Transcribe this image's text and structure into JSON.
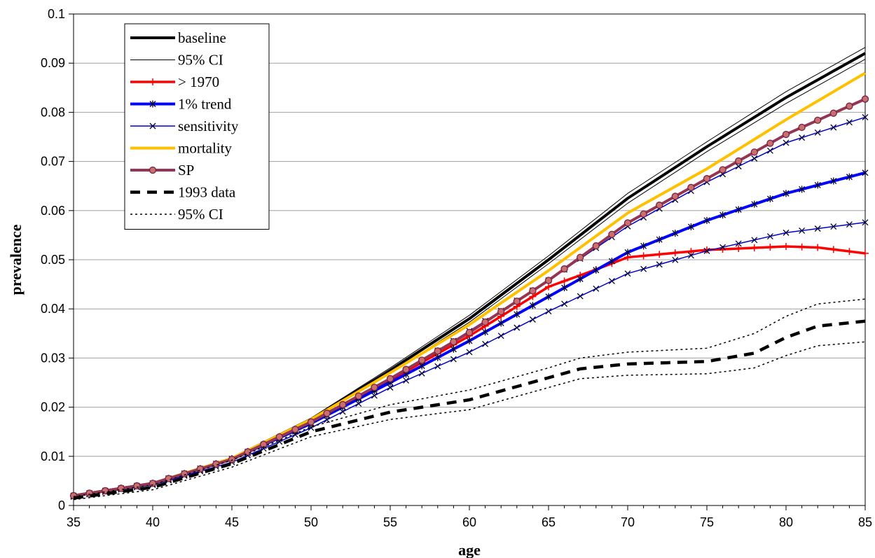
{
  "chart_data": {
    "type": "line",
    "title": "",
    "xlabel": "age",
    "ylabel": "prevalence",
    "xlim": [
      35,
      85
    ],
    "ylim": [
      0,
      0.1
    ],
    "x_ticks": [
      35,
      40,
      45,
      50,
      55,
      60,
      65,
      70,
      75,
      80,
      85
    ],
    "y_ticks": [
      0,
      0.01,
      0.02,
      0.03,
      0.04,
      0.05,
      0.06,
      0.07,
      0.08,
      0.09,
      0.1
    ],
    "x_tick_labels": [
      "35",
      "40",
      "45",
      "50",
      "55",
      "60",
      "65",
      "70",
      "75",
      "80",
      "85"
    ],
    "y_tick_labels": [
      "0",
      "0.01",
      "0.02",
      "0.03",
      "0.04",
      "0.05",
      "0.06",
      "0.07",
      "0.08",
      "0.09",
      "0.1"
    ],
    "grid": "horizontal",
    "legend_position": "top-left",
    "series": [
      {
        "name": "baseline",
        "color": "#000000",
        "width": 4,
        "dash": "",
        "marker": "none",
        "legend_marker": "none",
        "x": [
          35,
          40,
          45,
          50,
          55,
          60,
          65,
          70,
          75,
          80,
          85
        ],
        "y": [
          0.002,
          0.0045,
          0.0095,
          0.0175,
          0.0275,
          0.038,
          0.05,
          0.0625,
          0.073,
          0.083,
          0.092
        ]
      },
      {
        "name": "95% CI",
        "color": "#000000",
        "width": 1,
        "dash": "",
        "marker": "none",
        "legend_marker": "none",
        "x": [
          35,
          40,
          45,
          50,
          55,
          60,
          65,
          70,
          75,
          80,
          85
        ],
        "y": [
          0.0022,
          0.0047,
          0.0098,
          0.0178,
          0.028,
          0.0387,
          0.0508,
          0.0635,
          0.074,
          0.0842,
          0.0932
        ],
        "y_lower": [
          0.0018,
          0.0043,
          0.0092,
          0.0172,
          0.027,
          0.0373,
          0.0492,
          0.0615,
          0.072,
          0.0818,
          0.0908
        ]
      },
      {
        "name": "> 1970",
        "color": "#ff0000",
        "width": 3.5,
        "dash": "",
        "marker": "plus",
        "legend_marker": "plus",
        "x": [
          35,
          40,
          45,
          50,
          55,
          60,
          65,
          68,
          70,
          75,
          80,
          82,
          85
        ],
        "y": [
          0.002,
          0.0045,
          0.0095,
          0.017,
          0.0255,
          0.0345,
          0.0445,
          0.048,
          0.0505,
          0.052,
          0.0527,
          0.0525,
          0.0513
        ]
      },
      {
        "name": "1% trend",
        "color": "#0000ff",
        "width": 4,
        "dash": "",
        "marker": "asterisk",
        "legend_marker": "asterisk",
        "x": [
          35,
          40,
          45,
          50,
          55,
          60,
          65,
          70,
          75,
          80,
          85
        ],
        "y": [
          0.002,
          0.0045,
          0.0095,
          0.0167,
          0.025,
          0.0335,
          0.0425,
          0.0515,
          0.058,
          0.0635,
          0.0677
        ]
      },
      {
        "name": "sensitivity",
        "color": "#0000cc",
        "width": 1.5,
        "dash": "",
        "marker": "x",
        "legend_marker": "x",
        "x": [
          35,
          40,
          45,
          50,
          55,
          60,
          65,
          70,
          75,
          80,
          85
        ],
        "y": [
          0.0018,
          0.0042,
          0.0088,
          0.0158,
          0.024,
          0.0312,
          0.0395,
          0.0472,
          0.0518,
          0.0555,
          0.0576
        ]
      },
      {
        "name": "sensitivity",
        "color": "#0000cc",
        "width": 1.5,
        "dash": "",
        "marker": "x",
        "legend_marker": "x",
        "x": [
          35,
          40,
          45,
          50,
          55,
          60,
          65,
          70,
          75,
          80,
          85
        ],
        "y": [
          0.0018,
          0.0043,
          0.0092,
          0.0165,
          0.0255,
          0.0355,
          0.0458,
          0.0568,
          0.0658,
          0.0738,
          0.079
        ]
      },
      {
        "name": "mortality",
        "color": "#ffc000",
        "width": 4,
        "dash": "",
        "marker": "none",
        "legend_marker": "none",
        "x": [
          35,
          40,
          45,
          50,
          55,
          60,
          65,
          70,
          75,
          80,
          85
        ],
        "y": [
          0.002,
          0.0045,
          0.0096,
          0.0175,
          0.027,
          0.0368,
          0.0478,
          0.0595,
          0.0685,
          0.0785,
          0.088
        ]
      },
      {
        "name": "SP",
        "color": "#953553",
        "width": 4,
        "dash": "",
        "marker": "circle",
        "legend_marker": "circle",
        "x": [
          35,
          40,
          45,
          50,
          55,
          60,
          65,
          70,
          75,
          80,
          85
        ],
        "y": [
          0.002,
          0.0045,
          0.0094,
          0.017,
          0.0258,
          0.0352,
          0.0458,
          0.0575,
          0.0665,
          0.0755,
          0.0827
        ]
      },
      {
        "name": "1993 data",
        "color": "#000000",
        "width": 4.5,
        "dash": "14,10",
        "marker": "none",
        "legend_marker": "none",
        "x": [
          35,
          40,
          45,
          50,
          55,
          60,
          65,
          67,
          70,
          75,
          78,
          80,
          82,
          85
        ],
        "y": [
          0.0015,
          0.0037,
          0.0085,
          0.015,
          0.019,
          0.0215,
          0.026,
          0.0278,
          0.0288,
          0.0293,
          0.031,
          0.0342,
          0.0365,
          0.0375
        ]
      },
      {
        "name": "95% CI",
        "color": "#000000",
        "width": 1.5,
        "dash": "3,4",
        "marker": "none",
        "legend_marker": "none",
        "x": [
          35,
          40,
          45,
          50,
          55,
          60,
          65,
          67,
          70,
          75,
          78,
          80,
          82,
          85
        ],
        "y": [
          0.0018,
          0.0042,
          0.0092,
          0.016,
          0.0205,
          0.0235,
          0.028,
          0.03,
          0.0312,
          0.032,
          0.035,
          0.0385,
          0.041,
          0.042
        ],
        "y_lower": [
          0.0012,
          0.0032,
          0.0078,
          0.014,
          0.0175,
          0.0195,
          0.024,
          0.0258,
          0.0265,
          0.0268,
          0.028,
          0.0305,
          0.0325,
          0.0333
        ]
      }
    ]
  }
}
